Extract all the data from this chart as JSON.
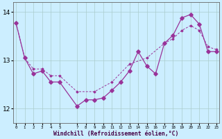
{
  "bg_color": "#cceeff",
  "grid_color": "#aacccc",
  "line_color": "#993399",
  "xlabel": "Windchill (Refroidissement éolien,°C)",
  "ylim": [
    11.7,
    14.2
  ],
  "yticks": [
    12,
    13,
    14
  ],
  "xlim": [
    -0.3,
    23.3
  ],
  "line1_x": [
    0,
    1,
    2,
    3,
    4,
    5,
    7,
    8,
    9,
    10,
    11,
    12,
    13,
    14,
    15,
    16,
    17,
    18,
    19,
    20,
    21,
    22,
    23
  ],
  "line1_y": [
    13.78,
    13.05,
    12.72,
    12.78,
    12.55,
    12.55,
    12.05,
    12.18,
    12.18,
    12.22,
    12.38,
    12.55,
    12.78,
    13.18,
    12.88,
    12.72,
    13.35,
    13.52,
    13.88,
    13.95,
    13.75,
    13.18,
    13.18
  ],
  "line2_x": [
    0,
    1,
    2,
    3,
    4,
    5,
    7,
    9,
    11,
    13,
    15,
    17,
    18,
    19,
    20,
    21,
    22,
    23
  ],
  "line2_y": [
    13.78,
    13.05,
    12.82,
    12.82,
    12.68,
    12.68,
    12.35,
    12.35,
    12.55,
    12.92,
    13.05,
    13.35,
    13.45,
    13.62,
    13.72,
    13.62,
    13.28,
    13.22
  ]
}
